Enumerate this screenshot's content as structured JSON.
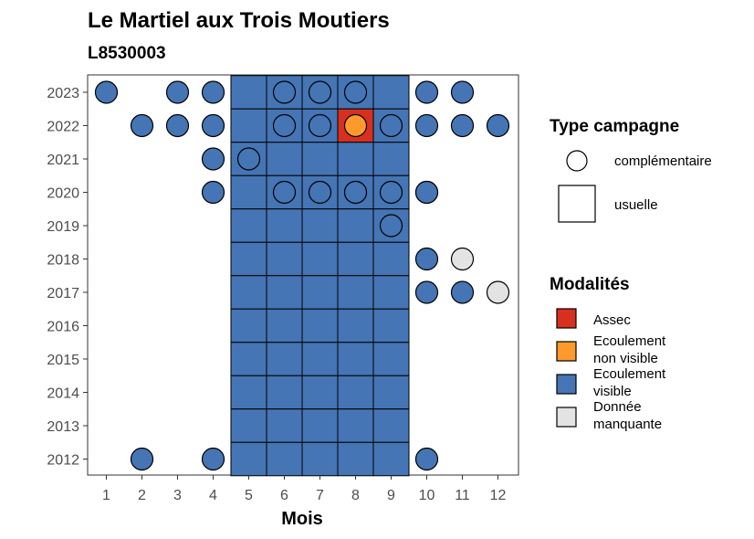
{
  "chart_data": {
    "type": "heatmap",
    "title": "Le Martiel aux Trois Moutiers",
    "subtitle": "L8530003",
    "xlabel": "Mois",
    "ylabel": "",
    "x_ticks": [
      1,
      2,
      3,
      4,
      5,
      6,
      7,
      8,
      9,
      10,
      11,
      12
    ],
    "y_ticks": [
      2023,
      2022,
      2021,
      2020,
      2019,
      2018,
      2017,
      2016,
      2015,
      2014,
      2013,
      2012
    ],
    "legend_shape": {
      "title": "Type campagne",
      "items": [
        {
          "label": "complémentaire",
          "shape": "circle"
        },
        {
          "label": "usuelle",
          "shape": "square"
        }
      ]
    },
    "legend_fill": {
      "title": "Modalités",
      "items": [
        {
          "key": "assec",
          "label_lines": [
            "Assec"
          ],
          "color": "#d7301f"
        },
        {
          "key": "nonvisible",
          "label_lines": [
            "Ecoulement",
            "non visible"
          ],
          "color": "#fd9a2b"
        },
        {
          "key": "visible",
          "label_lines": [
            "Ecoulement",
            "visible"
          ],
          "color": "#4575b4"
        },
        {
          "key": "manquante",
          "label_lines": [
            "Donnée",
            "manquante"
          ],
          "color": "#e3e3e3"
        }
      ]
    },
    "squares": [
      {
        "year": 2023,
        "months": [
          5,
          6,
          7,
          8,
          9
        ],
        "value": "visible"
      },
      {
        "year": 2022,
        "months": [
          5,
          6,
          7,
          9
        ],
        "value": "visible"
      },
      {
        "year": 2022,
        "months": [
          8
        ],
        "value": "assec"
      },
      {
        "year": 2021,
        "months": [
          5,
          6,
          7,
          8,
          9
        ],
        "value": "visible"
      },
      {
        "year": 2020,
        "months": [
          5,
          6,
          7,
          8,
          9
        ],
        "value": "visible"
      },
      {
        "year": 2019,
        "months": [
          5,
          6,
          7,
          8,
          9
        ],
        "value": "visible"
      },
      {
        "year": 2018,
        "months": [
          5,
          6,
          7,
          8,
          9
        ],
        "value": "visible"
      },
      {
        "year": 2017,
        "months": [
          5,
          6,
          7,
          8,
          9
        ],
        "value": "visible"
      },
      {
        "year": 2016,
        "months": [
          5,
          6,
          7,
          8,
          9
        ],
        "value": "visible"
      },
      {
        "year": 2015,
        "months": [
          5,
          6,
          7,
          8,
          9
        ],
        "value": "visible"
      },
      {
        "year": 2014,
        "months": [
          5,
          6,
          7,
          8,
          9
        ],
        "value": "visible"
      },
      {
        "year": 2013,
        "months": [
          5,
          6,
          7,
          8,
          9
        ],
        "value": "visible"
      },
      {
        "year": 2012,
        "months": [
          5,
          6,
          7,
          8,
          9
        ],
        "value": "visible"
      }
    ],
    "circles": [
      {
        "year": 2023,
        "month": 1,
        "value": "visible"
      },
      {
        "year": 2023,
        "month": 3,
        "value": "visible"
      },
      {
        "year": 2023,
        "month": 4,
        "value": "visible"
      },
      {
        "year": 2023,
        "month": 6,
        "value": "visible"
      },
      {
        "year": 2023,
        "month": 7,
        "value": "visible"
      },
      {
        "year": 2023,
        "month": 8,
        "value": "visible"
      },
      {
        "year": 2023,
        "month": 10,
        "value": "visible"
      },
      {
        "year": 2023,
        "month": 11,
        "value": "visible"
      },
      {
        "year": 2022,
        "month": 2,
        "value": "visible"
      },
      {
        "year": 2022,
        "month": 3,
        "value": "visible"
      },
      {
        "year": 2022,
        "month": 4,
        "value": "visible"
      },
      {
        "year": 2022,
        "month": 6,
        "value": "visible"
      },
      {
        "year": 2022,
        "month": 7,
        "value": "visible"
      },
      {
        "year": 2022,
        "month": 8,
        "value": "nonvisible"
      },
      {
        "year": 2022,
        "month": 9,
        "value": "visible"
      },
      {
        "year": 2022,
        "month": 10,
        "value": "visible"
      },
      {
        "year": 2022,
        "month": 11,
        "value": "visible"
      },
      {
        "year": 2022,
        "month": 12,
        "value": "visible"
      },
      {
        "year": 2021,
        "month": 4,
        "value": "visible"
      },
      {
        "year": 2021,
        "month": 5,
        "value": "visible"
      },
      {
        "year": 2020,
        "month": 4,
        "value": "visible"
      },
      {
        "year": 2020,
        "month": 6,
        "value": "visible"
      },
      {
        "year": 2020,
        "month": 7,
        "value": "visible"
      },
      {
        "year": 2020,
        "month": 8,
        "value": "visible"
      },
      {
        "year": 2020,
        "month": 8,
        "value": "visible"
      },
      {
        "year": 2020,
        "month": 9,
        "value": "visible"
      },
      {
        "year": 2020,
        "month": 10,
        "value": "visible"
      },
      {
        "year": 2020,
        "month": 10,
        "value": "visible"
      },
      {
        "year": 2019,
        "month": 9,
        "value": "visible"
      },
      {
        "year": 2018,
        "month": 10,
        "value": "visible"
      },
      {
        "year": 2018,
        "month": 11,
        "value": "manquante"
      },
      {
        "year": 2017,
        "month": 10,
        "value": "visible"
      },
      {
        "year": 2017,
        "month": 11,
        "value": "visible"
      },
      {
        "year": 2017,
        "month": 12,
        "value": "manquante"
      },
      {
        "year": 2012,
        "month": 2,
        "value": "visible"
      },
      {
        "year": 2012,
        "month": 4,
        "value": "visible"
      },
      {
        "year": 2012,
        "month": 10,
        "value": "visible"
      }
    ]
  }
}
